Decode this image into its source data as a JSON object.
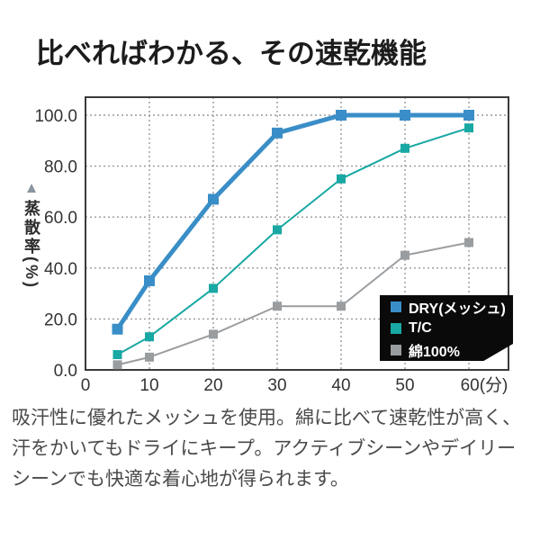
{
  "page": {
    "title": "比べればわかる、その速乾機能",
    "description": "吸汗性に優れたメッシュを使用。綿に比べて速乾性が高く、汗をかいてもドライにキープ。アクティブシーンやデイリーシーンでも快適な着心地が得られます。"
  },
  "chart_data": {
    "type": "line",
    "title": "",
    "x": [
      5,
      10,
      20,
      30,
      40,
      50,
      60
    ],
    "series": [
      {
        "name": "DRY(メッシュ)",
        "color": "#3a8ec7",
        "line_width": 5,
        "marker_size": 12,
        "values": [
          16,
          35,
          67,
          93,
          100,
          100,
          100
        ]
      },
      {
        "name": "T/C",
        "color": "#19a8a3",
        "line_width": 2,
        "marker_size": 10,
        "values": [
          6,
          13,
          32,
          55,
          75,
          87,
          95
        ]
      },
      {
        "name": "綿100%",
        "color": "#9a9da0",
        "line_width": 2,
        "marker_size": 10,
        "values": [
          2,
          5,
          14,
          25,
          25,
          45,
          50
        ]
      }
    ],
    "ylabel": "蒸散率(%)",
    "ylabel_marker": "▲",
    "xlabel": "(分)",
    "ylim": [
      0,
      105
    ],
    "xlim": [
      0,
      66
    ],
    "grid": true,
    "legend_position": "inside-bottom-right",
    "y_ticks": [
      {
        "v": 0,
        "label": "0.0"
      },
      {
        "v": 20,
        "label": "20.0"
      },
      {
        "v": 40,
        "label": "40.0"
      },
      {
        "v": 60,
        "label": "60.0"
      },
      {
        "v": 80,
        "label": "80.0"
      },
      {
        "v": 100,
        "label": "100.0"
      }
    ],
    "x_ticks": [
      {
        "v": 0,
        "label": "0"
      },
      {
        "v": 10,
        "label": "10"
      },
      {
        "v": 20,
        "label": "20"
      },
      {
        "v": 30,
        "label": "30"
      },
      {
        "v": 40,
        "label": "40"
      },
      {
        "v": 50,
        "label": "50"
      },
      {
        "v": 60,
        "label": "60(分)"
      }
    ],
    "colors": {
      "grid": "#999999",
      "axis": "#3a3a3a",
      "tick_text": "#333333",
      "legend_bg": "#0a0a0a",
      "legend_text": "#ffffff",
      "triangle": "#8b95a0",
      "title_text": "#1c1c1c",
      "body_text": "#4a4a4a"
    }
  }
}
